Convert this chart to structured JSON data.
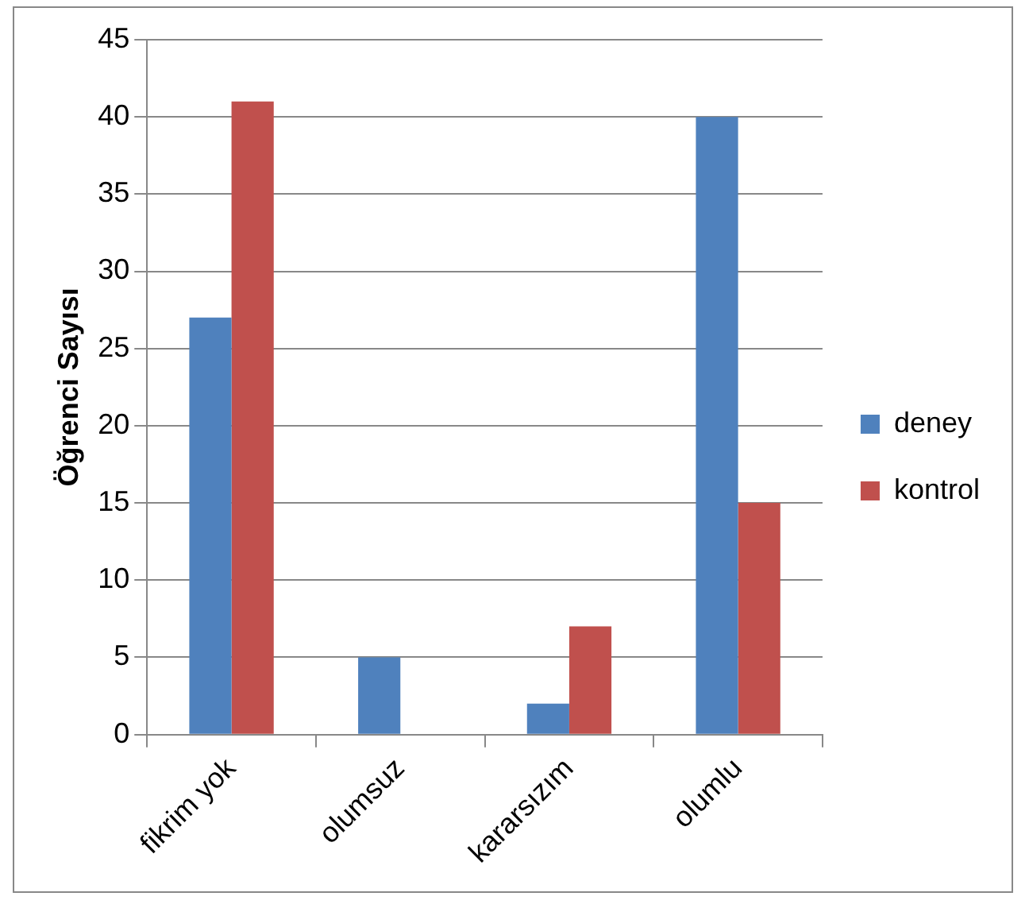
{
  "chart_data": {
    "type": "bar",
    "ylabel": "Öğrenci Sayısı",
    "categories": [
      "fikrim yok",
      "olumsuz",
      "kararsızım",
      "olumlu"
    ],
    "series": [
      {
        "name": "deney",
        "color": "#4f81bd",
        "values": [
          27,
          5,
          2,
          40
        ]
      },
      {
        "name": "kontrol",
        "color": "#c0504d",
        "values": [
          41,
          0,
          7,
          15
        ]
      }
    ],
    "ylim": [
      0,
      45
    ],
    "yticks": [
      0,
      5,
      10,
      15,
      20,
      25,
      30,
      35,
      40,
      45
    ],
    "grid": "y",
    "legend": "right"
  }
}
